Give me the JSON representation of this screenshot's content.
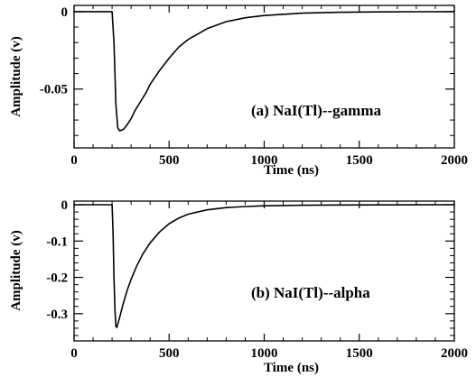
{
  "chart_data": [
    {
      "type": "line",
      "panel": "top",
      "annotation": "(a) NaI(Tl)--gamma",
      "xlabel": "Time (ns)",
      "ylabel": "Amplitude (v)",
      "xlim": [
        0,
        2000
      ],
      "ylim": [
        -0.088,
        0.004
      ],
      "xticks": [
        0,
        500,
        1000,
        1500,
        2000
      ],
      "xtick_labels": [
        "0",
        "500",
        "1000",
        "1500",
        "2000"
      ],
      "yticks": [
        0,
        -0.05
      ],
      "ytick_labels": [
        "0",
        "-0.05"
      ],
      "grid": false,
      "series": [
        {
          "x": [
            0,
            200,
            210,
            220,
            230,
            240,
            260,
            280,
            300,
            320,
            350,
            380,
            400,
            450,
            500,
            550,
            600,
            700,
            800,
            900,
            1000,
            1200,
            1400,
            1600,
            1800,
            2000
          ],
          "y": [
            0,
            0,
            -0.02,
            -0.06,
            -0.075,
            -0.077,
            -0.076,
            -0.073,
            -0.069,
            -0.064,
            -0.058,
            -0.052,
            -0.047,
            -0.038,
            -0.03,
            -0.023,
            -0.018,
            -0.011,
            -0.0065,
            -0.004,
            -0.0025,
            -0.001,
            -0.0004,
            -0.0002,
            -0.0001,
            0
          ]
        }
      ]
    },
    {
      "type": "line",
      "panel": "bottom",
      "annotation": "(b) NaI(Tl)--alpha",
      "xlabel": "Time (ns)",
      "ylabel": "Amplitude (v)",
      "xlim": [
        0,
        2000
      ],
      "ylim": [
        -0.375,
        0.01
      ],
      "xticks": [
        0,
        500,
        1000,
        1500,
        2000
      ],
      "xtick_labels": [
        "0",
        "500",
        "1000",
        "1500",
        "2000"
      ],
      "yticks": [
        0,
        -0.1,
        -0.2,
        -0.3
      ],
      "ytick_labels": [
        "0",
        "-0.1",
        "-0.2",
        "-0.3"
      ],
      "grid": false,
      "series": [
        {
          "x": [
            0,
            200,
            205,
            210,
            215,
            220,
            225,
            240,
            260,
            280,
            300,
            330,
            360,
            400,
            450,
            500,
            550,
            600,
            700,
            800,
            900,
            1000,
            1200,
            1400,
            1600,
            1800,
            2000
          ],
          "y": [
            0,
            0,
            -0.08,
            -0.2,
            -0.29,
            -0.335,
            -0.338,
            -0.31,
            -0.27,
            -0.235,
            -0.205,
            -0.168,
            -0.137,
            -0.105,
            -0.075,
            -0.052,
            -0.037,
            -0.026,
            -0.014,
            -0.008,
            -0.005,
            -0.003,
            -0.0015,
            -0.0008,
            -0.0004,
            -0.0002,
            0
          ]
        }
      ]
    }
  ]
}
